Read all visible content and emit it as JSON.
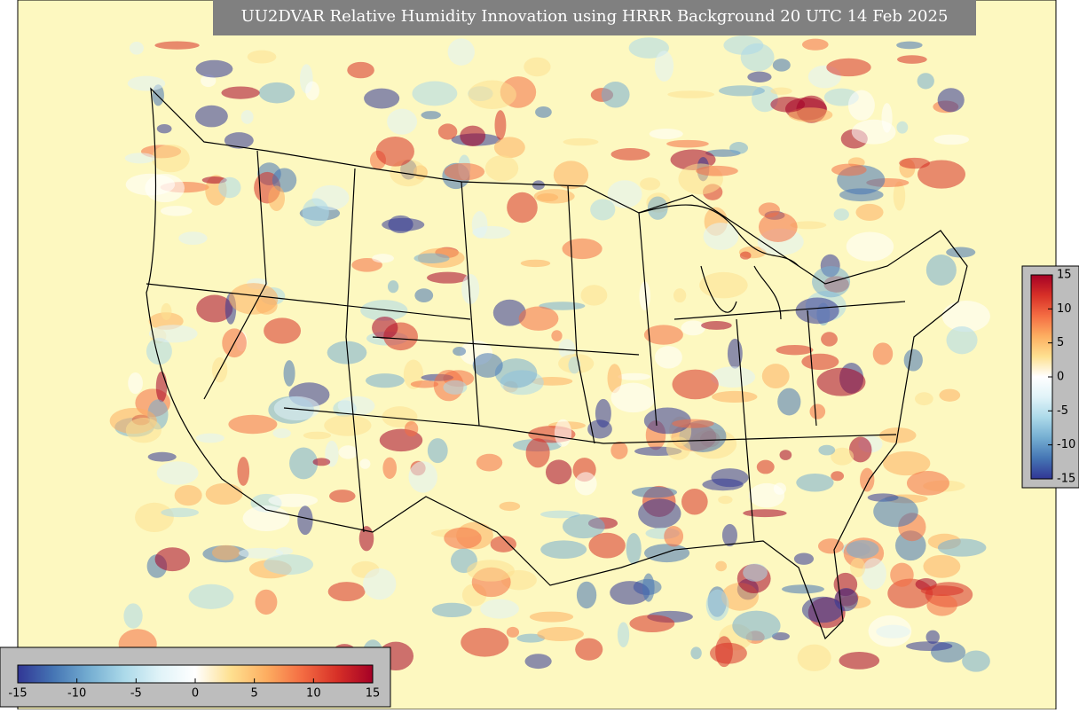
{
  "title": "UU2DVAR Relative Humidity Innovation using HRRR Background 20 UTC 14 Feb 2025",
  "colormap": [
    "#313695",
    "#4575b4",
    "#74add1",
    "#abd9e9",
    "#e0f3f8",
    "#ffffff",
    "#fee090",
    "#fdae61",
    "#f46d43",
    "#d73027",
    "#a50026"
  ],
  "colorbars": [
    {
      "orientation": "vertical",
      "range": [
        -15,
        15
      ],
      "ticks": [
        -15,
        -10,
        -5,
        0,
        5,
        10,
        15
      ]
    },
    {
      "orientation": "horizontal",
      "range": [
        -15,
        15
      ],
      "ticks": [
        -15,
        -10,
        -5,
        0,
        5,
        10,
        15
      ]
    }
  ]
}
